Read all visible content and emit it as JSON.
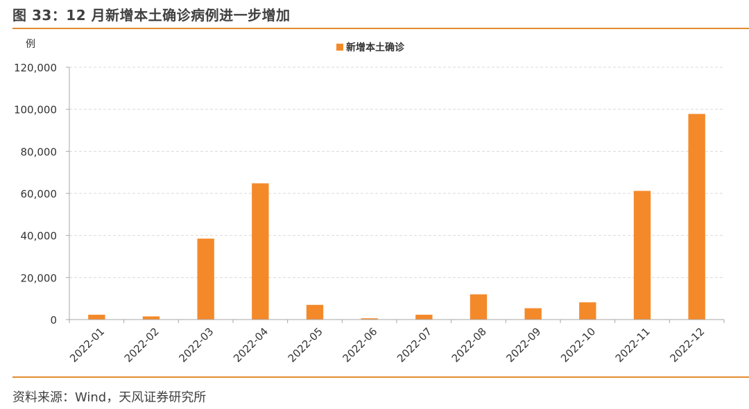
{
  "header": {
    "title": "图 33：12 月新增本土确诊病例进一步增加"
  },
  "footer": {
    "source": "资料来源：Wind，天风证券研究所"
  },
  "colors": {
    "accent": "#E38A2D",
    "bar": "#F4892A",
    "grid": "#D9D9D9",
    "axis": "#A6A6A6"
  },
  "chart_data": {
    "type": "bar",
    "unit_label": "例",
    "categories": [
      "2022-01",
      "2022-02",
      "2022-03",
      "2022-04",
      "2022-05",
      "2022-06",
      "2022-07",
      "2022-08",
      "2022-09",
      "2022-10",
      "2022-11",
      "2022-12"
    ],
    "series": [
      {
        "name": "新增本土确诊",
        "values": [
          2300,
          1500,
          38500,
          64800,
          7000,
          600,
          2300,
          12000,
          5400,
          8200,
          61200,
          97800
        ]
      }
    ],
    "ylim": [
      0,
      120000
    ],
    "yticks": [
      0,
      20000,
      40000,
      60000,
      80000,
      100000,
      120000
    ],
    "ytick_labels": [
      "0",
      "20,000",
      "40,000",
      "60,000",
      "80,000",
      "100,000",
      "120,000"
    ],
    "grid": true,
    "legend_position": "top-center"
  }
}
